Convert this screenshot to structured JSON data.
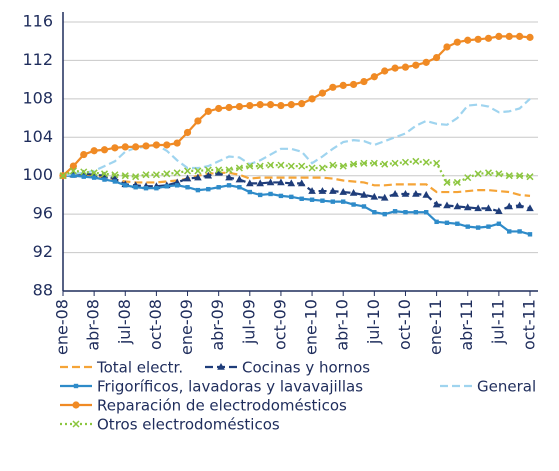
{
  "chart_data": {
    "type": "line",
    "categories": [
      "ene-08",
      null,
      null,
      "abr-08",
      null,
      null,
      "jul-08",
      null,
      null,
      "oct-08",
      null,
      null,
      "ene-09",
      null,
      null,
      "abr-09",
      null,
      null,
      "jul-09",
      null,
      null,
      "oct-09",
      null,
      null,
      "ene-10",
      null,
      null,
      "abr-10",
      null,
      null,
      "jul-10",
      null,
      null,
      "oct-10",
      null,
      null,
      "ene-11",
      null,
      null,
      "abr-11",
      null,
      null,
      "jul-11",
      null,
      null,
      "oct-11"
    ],
    "ylim": [
      88,
      116
    ],
    "yticks": [
      88,
      92,
      96,
      100,
      104,
      108,
      112,
      116
    ],
    "grid": true,
    "series": [
      {
        "name": "Total electr.",
        "color": "#f5a437",
        "style": "dashed",
        "marker": "none",
        "values": [
          100,
          100.1,
          100.1,
          100,
          99.8,
          99.6,
          99.4,
          99.3,
          99.3,
          99.3,
          99.4,
          99.5,
          99.7,
          100,
          100.2,
          100.3,
          100.3,
          100.1,
          99.7,
          99.8,
          99.8,
          99.8,
          99.8,
          99.8,
          99.8,
          99.8,
          99.7,
          99.5,
          99.4,
          99.3,
          99,
          99,
          99.1,
          99.1,
          99.1,
          99.1,
          98.3,
          98.3,
          98.3,
          98.4,
          98.5,
          98.5,
          98.4,
          98.3,
          98,
          97.9
        ]
      },
      {
        "name": "Cocinas y hornos",
        "color": "#1f3d7a",
        "style": "dashed",
        "marker": "triangle",
        "values": [
          100,
          100.1,
          100.2,
          100.1,
          100,
          99.7,
          99.1,
          99,
          98.9,
          98.9,
          99,
          99.3,
          99.7,
          99.8,
          100,
          100.3,
          99.8,
          99.6,
          99.2,
          99.2,
          99.3,
          99.3,
          99.2,
          99.2,
          98.4,
          98.4,
          98.4,
          98.3,
          98.2,
          98,
          97.8,
          97.7,
          98.1,
          98.1,
          98.1,
          98,
          97,
          96.9,
          96.8,
          96.7,
          96.6,
          96.6,
          96.3,
          96.8,
          96.9,
          96.6
        ]
      },
      {
        "name": "Frigoríficos, lavadoras y lavavajillas",
        "color": "#2e8bc9",
        "style": "solid",
        "marker": "square",
        "values": [
          100,
          100,
          99.9,
          99.8,
          99.6,
          99.4,
          99,
          98.8,
          98.7,
          98.7,
          98.9,
          99,
          98.8,
          98.5,
          98.6,
          98.8,
          99,
          98.8,
          98.3,
          98,
          98.1,
          97.9,
          97.8,
          97.6,
          97.5,
          97.4,
          97.3,
          97.3,
          97,
          96.8,
          96.2,
          96,
          96.3,
          96.2,
          96.2,
          96.2,
          95.2,
          95.1,
          95,
          94.7,
          94.6,
          94.7,
          95,
          94.2,
          94.2,
          93.9
        ]
      },
      {
        "name": "General",
        "color": "#9fd4ef",
        "style": "dashed",
        "marker": "none",
        "values": [
          100,
          100.2,
          100.3,
          100.5,
          101,
          101.5,
          102.5,
          102.9,
          103,
          103.2,
          102.6,
          101.6,
          100.8,
          100.8,
          101,
          101.5,
          102,
          101.9,
          101.2,
          101.6,
          102.2,
          102.8,
          102.8,
          102.5,
          101.3,
          102,
          102.8,
          103.5,
          103.7,
          103.6,
          103.2,
          103.6,
          104,
          104.4,
          105.2,
          105.7,
          105.4,
          105.3,
          106,
          107.3,
          107.4,
          107.2,
          106.6,
          106.7,
          107,
          108
        ]
      },
      {
        "name": "Reparación de electrodomésticos",
        "color": "#f08a24",
        "style": "solid",
        "marker": "circle",
        "values": [
          100,
          101,
          102.2,
          102.6,
          102.7,
          102.9,
          103,
          103,
          103.1,
          103.2,
          103.2,
          103.4,
          104.5,
          105.7,
          106.7,
          107,
          107.1,
          107.2,
          107.3,
          107.4,
          107.4,
          107.3,
          107.4,
          107.5,
          108,
          108.6,
          109.2,
          109.4,
          109.5,
          109.8,
          110.3,
          110.9,
          111.2,
          111.3,
          111.5,
          111.8,
          112.3,
          113.4,
          113.9,
          114.1,
          114.2,
          114.3,
          114.5,
          114.5,
          114.5,
          114.4
        ]
      },
      {
        "name": "Otros electrodomésticos",
        "color": "#8cc63f",
        "style": "dotted",
        "marker": "x",
        "values": [
          100,
          100.5,
          100.4,
          100.3,
          100.2,
          100.1,
          100,
          99.9,
          100.1,
          100.1,
          100.2,
          100.3,
          100.5,
          100.5,
          100.6,
          100.6,
          100.6,
          100.8,
          101,
          101,
          101.1,
          101.1,
          101,
          101,
          100.8,
          100.8,
          101.1,
          101,
          101.2,
          101.3,
          101.3,
          101.2,
          101.3,
          101.4,
          101.5,
          101.4,
          101.3,
          99.3,
          99.3,
          99.8,
          100.2,
          100.3,
          100.2,
          100,
          100,
          99.9
        ]
      }
    ]
  }
}
